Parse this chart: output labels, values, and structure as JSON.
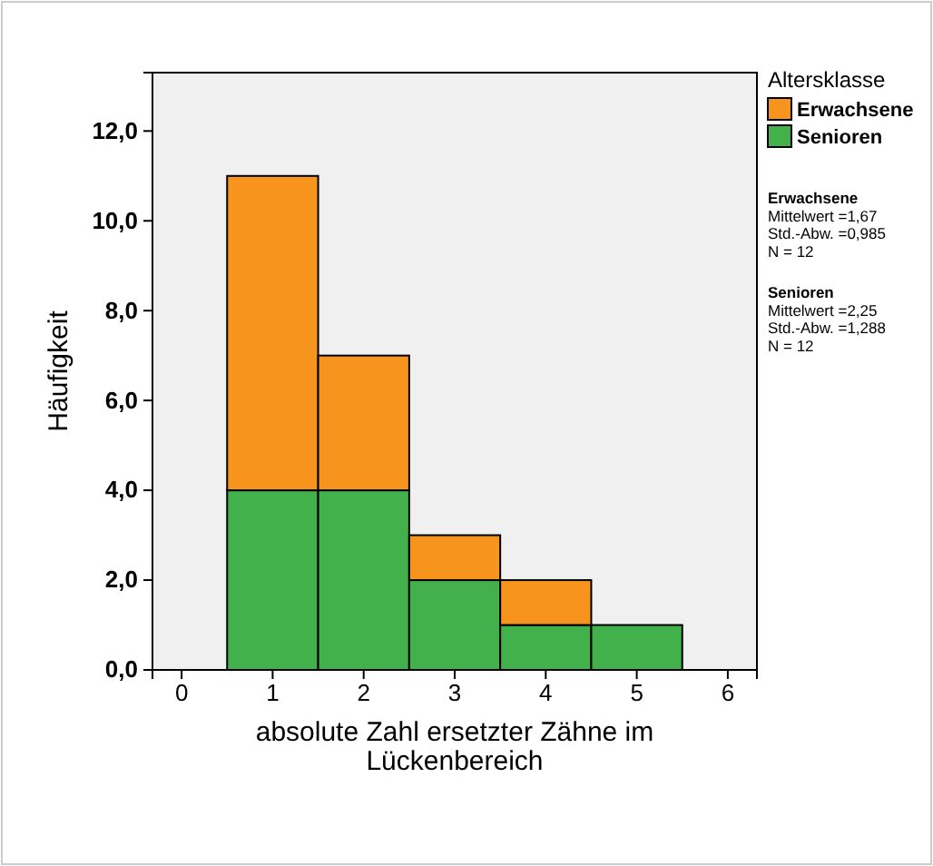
{
  "chart_data": {
    "type": "bar",
    "stacked": true,
    "x": [
      1,
      2,
      3,
      4,
      5
    ],
    "series": [
      {
        "name": "Senioren",
        "color": "#43b14b",
        "values": [
          4,
          4,
          2,
          1,
          1
        ]
      },
      {
        "name": "Erwachsene",
        "color": "#f7941d",
        "values": [
          7,
          3,
          1,
          1,
          0
        ]
      }
    ],
    "xlim": [
      -0.32,
      6.32
    ],
    "xticks": [
      0,
      1,
      2,
      3,
      4,
      5,
      6
    ],
    "ylim": [
      0,
      13.3
    ],
    "yticks": [
      {
        "value": 0,
        "label": "0,0"
      },
      {
        "value": 2,
        "label": "2,0"
      },
      {
        "value": 4,
        "label": "4,0"
      },
      {
        "value": 6,
        "label": "6,0"
      },
      {
        "value": 8,
        "label": "8,0"
      },
      {
        "value": 10,
        "label": "10,0"
      },
      {
        "value": 12,
        "label": "12,0"
      }
    ],
    "xlabel": "absolute Zahl ersetzter Zähne im Lückenbereich",
    "ylabel": "Häufigkeit",
    "legend_title": "Altersklasse",
    "legend": "right",
    "grid": false,
    "annotations": [
      "Erwachsene\nMittelwert =1,67\nStd.-Abw. =0,985\nN = 12",
      "Senioren\nMittelwert =2,25\nStd.-Abw. =1,288\nN = 12"
    ]
  }
}
